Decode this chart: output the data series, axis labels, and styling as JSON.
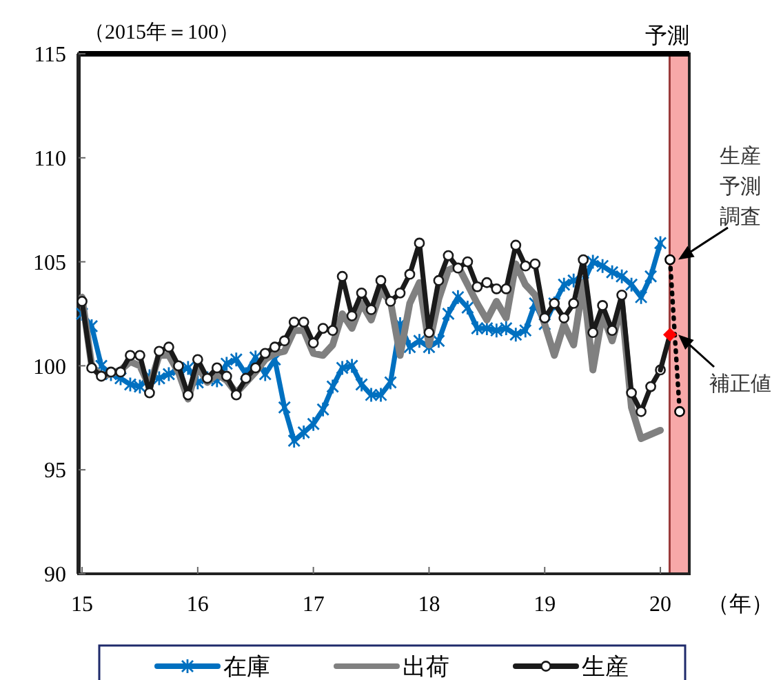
{
  "chart_data": {
    "type": "line",
    "ylabel": "（2015年＝100）",
    "xlabel": "（年）",
    "xlim": [
      14.97,
      20.25
    ],
    "xticks": [
      15,
      16,
      17,
      18,
      19,
      20
    ],
    "ylim": [
      90,
      115
    ],
    "yticks": [
      90,
      95,
      100,
      105,
      110,
      115
    ],
    "grid": false,
    "legend": "bottom",
    "x": [
      15,
      15.0833,
      15.1667,
      15.25,
      15.3333,
      15.4167,
      15.5,
      15.5833,
      15.6667,
      15.75,
      15.8333,
      15.9167,
      16,
      16.0833,
      16.1667,
      16.25,
      16.3333,
      16.4167,
      16.5,
      16.5833,
      16.6667,
      16.75,
      16.8333,
      16.9167,
      17,
      17.0833,
      17.1667,
      17.25,
      17.3333,
      17.4167,
      17.5,
      17.5833,
      17.6667,
      17.75,
      17.8333,
      17.9167,
      18,
      18.0833,
      18.1667,
      18.25,
      18.3333,
      18.4167,
      18.5,
      18.5833,
      18.6667,
      18.75,
      18.8333,
      18.9167,
      19,
      19.0833,
      19.1667,
      19.25,
      19.3333,
      19.4167,
      19.5,
      19.5833,
      19.6667,
      19.75,
      19.8333,
      19.9167,
      20
    ],
    "bands": [
      {
        "axis": "x",
        "from": 20.08,
        "to": 20.25,
        "label": "予測",
        "color": "#f7a8a8"
      }
    ],
    "annotations": [
      {
        "text": "生産予測調査",
        "x": 20.0833,
        "y": 105.1
      },
      {
        "text": "補正値",
        "x": 20.0833,
        "y": 101.5
      }
    ],
    "series": [
      {
        "name": "在庫",
        "color": "#0070c0",
        "marker": "cross",
        "values": [
          102.5,
          101.9,
          100.0,
          99.6,
          99.4,
          99.1,
          99.0,
          99.5,
          99.4,
          99.6,
          99.8,
          99.9,
          99.2,
          99.4,
          99.3,
          100.1,
          100.3,
          99.6,
          100.4,
          99.6,
          100.3,
          98.0,
          96.4,
          96.8,
          97.2,
          97.9,
          99.0,
          99.9,
          100.0,
          99.1,
          98.6,
          98.6,
          99.2,
          102.0,
          100.9,
          101.2,
          100.9,
          101.2,
          102.5,
          103.3,
          102.8,
          101.8,
          101.8,
          101.7,
          101.8,
          101.5,
          101.7,
          103.0,
          102.0,
          103.0,
          103.9,
          104.1,
          104.0,
          105.0,
          104.8,
          104.5,
          104.3,
          103.9,
          103.3,
          104.3,
          105.9
        ]
      },
      {
        "name": "出荷",
        "color": "#808080",
        "marker": "none",
        "values": [
          103.3,
          100.0,
          99.5,
          99.6,
          99.8,
          100.2,
          100.0,
          99.0,
          100.5,
          100.5,
          99.7,
          98.4,
          100.0,
          99.2,
          99.6,
          99.3,
          98.7,
          99.2,
          99.7,
          100.3,
          100.6,
          100.7,
          101.7,
          101.7,
          100.6,
          100.5,
          101.0,
          102.5,
          101.8,
          103.0,
          102.2,
          103.6,
          103.1,
          100.5,
          103.0,
          104.0,
          101.0,
          103.2,
          104.6,
          104.8,
          103.9,
          103.0,
          102.2,
          103.1,
          102.3,
          104.9,
          103.9,
          103.4,
          102.0,
          100.5,
          102.0,
          101.0,
          104.0,
          99.8,
          102.5,
          101.2,
          102.9,
          98.0,
          96.5,
          96.7,
          96.9
        ]
      },
      {
        "name": "生産",
        "color": "#1a1a1a",
        "marker": "circle",
        "values": [
          103.1,
          99.9,
          99.5,
          99.7,
          99.7,
          100.5,
          100.5,
          98.7,
          100.7,
          100.9,
          100.0,
          98.6,
          100.3,
          99.4,
          99.9,
          99.5,
          98.6,
          99.4,
          99.9,
          100.6,
          100.9,
          101.2,
          102.1,
          102.1,
          101.1,
          101.8,
          101.7,
          104.3,
          102.4,
          103.5,
          102.7,
          104.1,
          103.1,
          103.5,
          104.4,
          105.9,
          101.6,
          104.1,
          105.3,
          104.7,
          105.0,
          103.8,
          104.0,
          103.7,
          103.7,
          105.8,
          104.8,
          104.9,
          102.3,
          103.0,
          102.3,
          103.0,
          105.1,
          101.6,
          102.9,
          101.7,
          103.4,
          98.7,
          97.8,
          99.0,
          99.8
        ]
      },
      {
        "color": "#1a1a1a",
        "x": [
          20.0,
          20.0833
        ],
        "values": [
          99.8,
          101.5
        ]
      },
      {
        "color": "#000000",
        "marker": "circle",
        "line_style": "dotted",
        "x": [
          20.0833,
          20.1667
        ],
        "values": [
          105.1,
          97.8
        ]
      },
      {
        "type": "scatter",
        "color": "#ff0000",
        "marker": "diamond",
        "x": [
          20.0833
        ],
        "values": [
          101.5
        ]
      }
    ]
  }
}
